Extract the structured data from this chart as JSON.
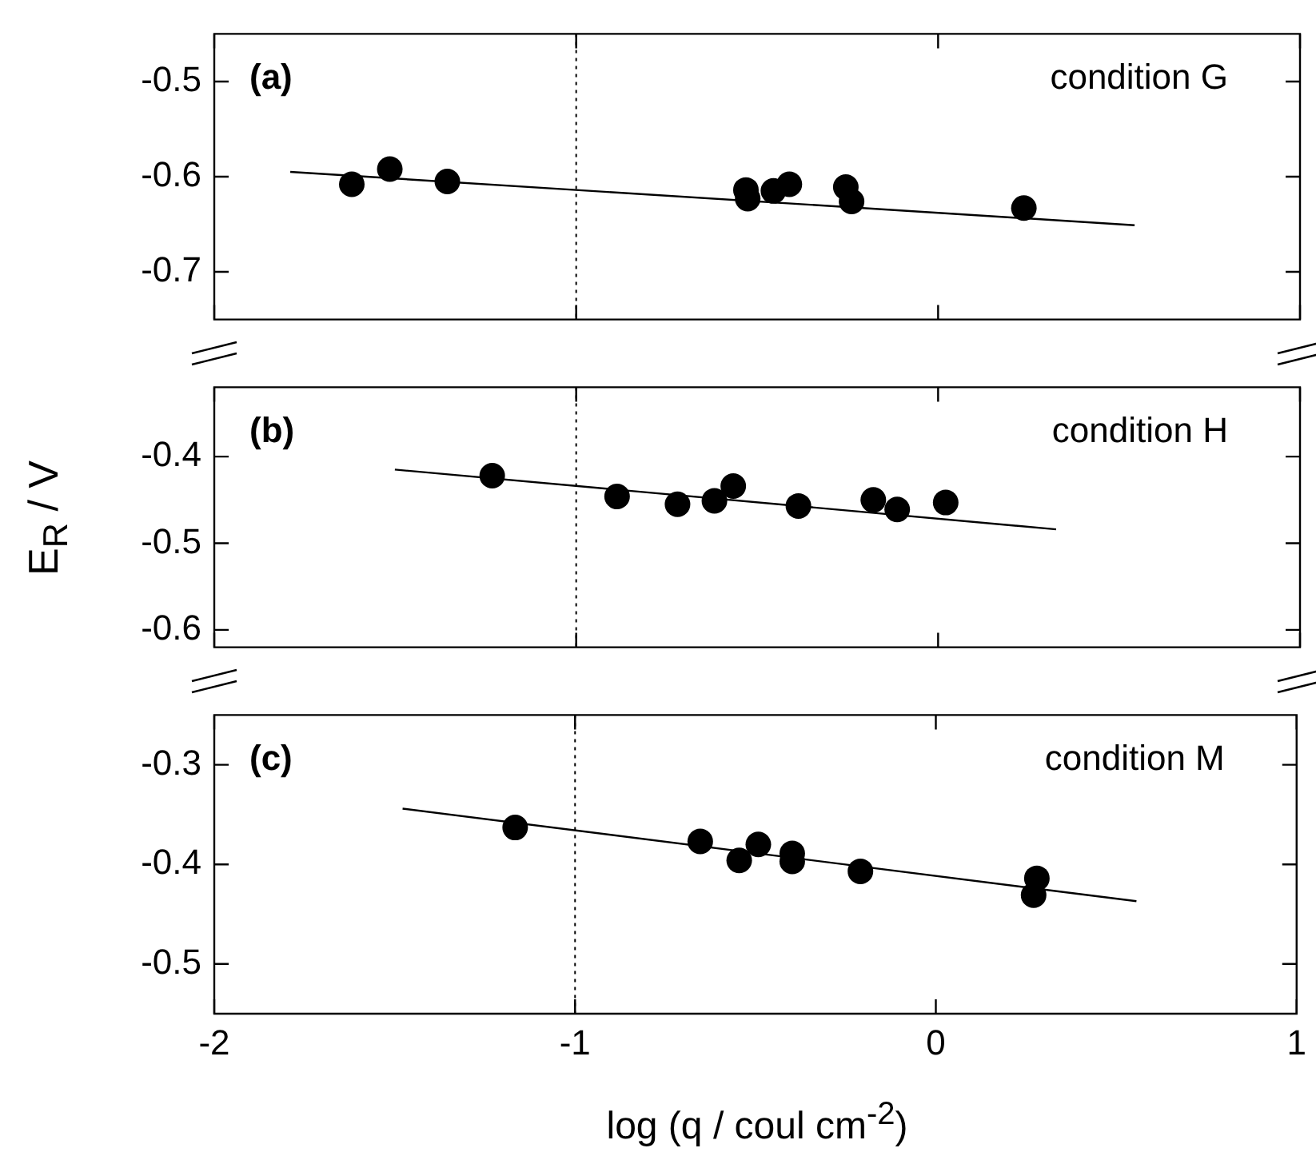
{
  "chart_data": [
    {
      "type": "scatter",
      "annotations": [
        "(a)",
        "condition G"
      ],
      "xlim": [
        -2,
        1
      ],
      "xticks": [
        -2,
        -1,
        0,
        1
      ],
      "ylim": [
        -0.75,
        -0.45
      ],
      "yticks": [
        -0.5,
        -0.6,
        -0.7
      ],
      "tick_labels": "y",
      "marker": "circle",
      "ref_lines": [
        {
          "axis": "x",
          "value": -1,
          "line_style": "dotted",
          "color": "#000000"
        }
      ],
      "series": [
        {
          "color": "#000000",
          "x": [
            -1.62,
            -1.515,
            -1.356,
            -0.531,
            -0.526,
            -0.455,
            -0.411,
            -0.255,
            -0.239,
            0.237
          ],
          "values": [
            -0.608,
            -0.592,
            -0.605,
            -0.614,
            -0.623,
            -0.615,
            -0.608,
            -0.611,
            -0.626,
            -0.633
          ]
        },
        {
          "type": "line",
          "color": "#000000",
          "marker": "none",
          "x": [
            -1.79,
            0.543
          ],
          "values": [
            -0.595,
            -0.651
          ]
        }
      ]
    },
    {
      "type": "scatter",
      "annotations": [
        "(b)",
        "condition H"
      ],
      "ylabel": "E$_{R}$ / V",
      "xlim": [
        -2,
        1
      ],
      "xticks": [
        -2,
        -1,
        0,
        1
      ],
      "ylim": [
        -0.62,
        -0.32
      ],
      "yticks": [
        -0.4,
        -0.5,
        -0.6
      ],
      "tick_labels": "y",
      "marker": "circle",
      "ref_lines": [
        {
          "axis": "x",
          "value": -1,
          "line_style": "dotted",
          "color": "#000000"
        }
      ],
      "series": [
        {
          "color": "#000000",
          "x": [
            -1.232,
            -0.887,
            -0.72,
            -0.618,
            -0.566,
            -0.386,
            -0.179,
            -0.113,
            0.021
          ],
          "values": [
            -0.422,
            -0.446,
            -0.455,
            -0.451,
            -0.434,
            -0.457,
            -0.45,
            -0.461,
            -0.453
          ]
        },
        {
          "type": "line",
          "color": "#000000",
          "marker": "none",
          "x": [
            -1.501,
            0.326
          ],
          "values": [
            -0.415,
            -0.484
          ]
        }
      ]
    },
    {
      "type": "scatter",
      "annotations": [
        "(c)",
        "condition M"
      ],
      "xlabel": "log (q / coul cm$^{-2}$)",
      "xlim": [
        -2,
        1
      ],
      "xticks": [
        -2,
        -1,
        0,
        1
      ],
      "ylim": [
        -0.55,
        -0.25
      ],
      "yticks": [
        -0.3,
        -0.4,
        -0.5
      ],
      "marker": "circle",
      "ref_lines": [
        {
          "axis": "x",
          "value": -1,
          "line_style": "dotted",
          "color": "#000000"
        }
      ],
      "series": [
        {
          "color": "#000000",
          "x": [
            -1.166,
            -0.653,
            -0.545,
            -0.492,
            -0.398,
            -0.398,
            -0.209,
            0.28,
            0.271
          ],
          "values": [
            -0.363,
            -0.377,
            -0.396,
            -0.38,
            -0.389,
            -0.397,
            -0.407,
            -0.414,
            -0.431
          ]
        },
        {
          "type": "line",
          "color": "#000000",
          "marker": "none",
          "x": [
            -1.478,
            0.556
          ],
          "values": [
            -0.344,
            -0.437
          ]
        }
      ]
    }
  ]
}
